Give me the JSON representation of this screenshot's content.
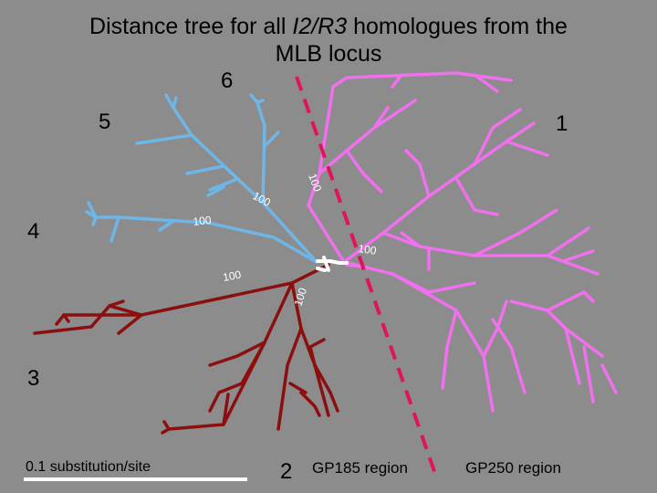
{
  "title": {
    "prefix": "Distance tree for all ",
    "gene": "I2/R3",
    "suffix": " homologues from the",
    "line2": "MLB locus"
  },
  "clades": [
    {
      "label": "1"
    },
    {
      "label": "2"
    },
    {
      "label": "3"
    },
    {
      "label": "4"
    },
    {
      "label": "5"
    },
    {
      "label": "6"
    }
  ],
  "bootstrap": [
    "100",
    "100",
    "100",
    "100",
    "100",
    "100"
  ],
  "regions": {
    "left": "GP185 region",
    "right": "GP250 region"
  },
  "scale": {
    "label": "0.1 substitution/site"
  },
  "colors": {
    "background": "#8c8c8c",
    "clade_blue": "#6fb6e8",
    "clade_pink": "#f070ee",
    "clade_red": "#8b0f0f",
    "divider": "#e0145c",
    "root": "#ffffff"
  }
}
